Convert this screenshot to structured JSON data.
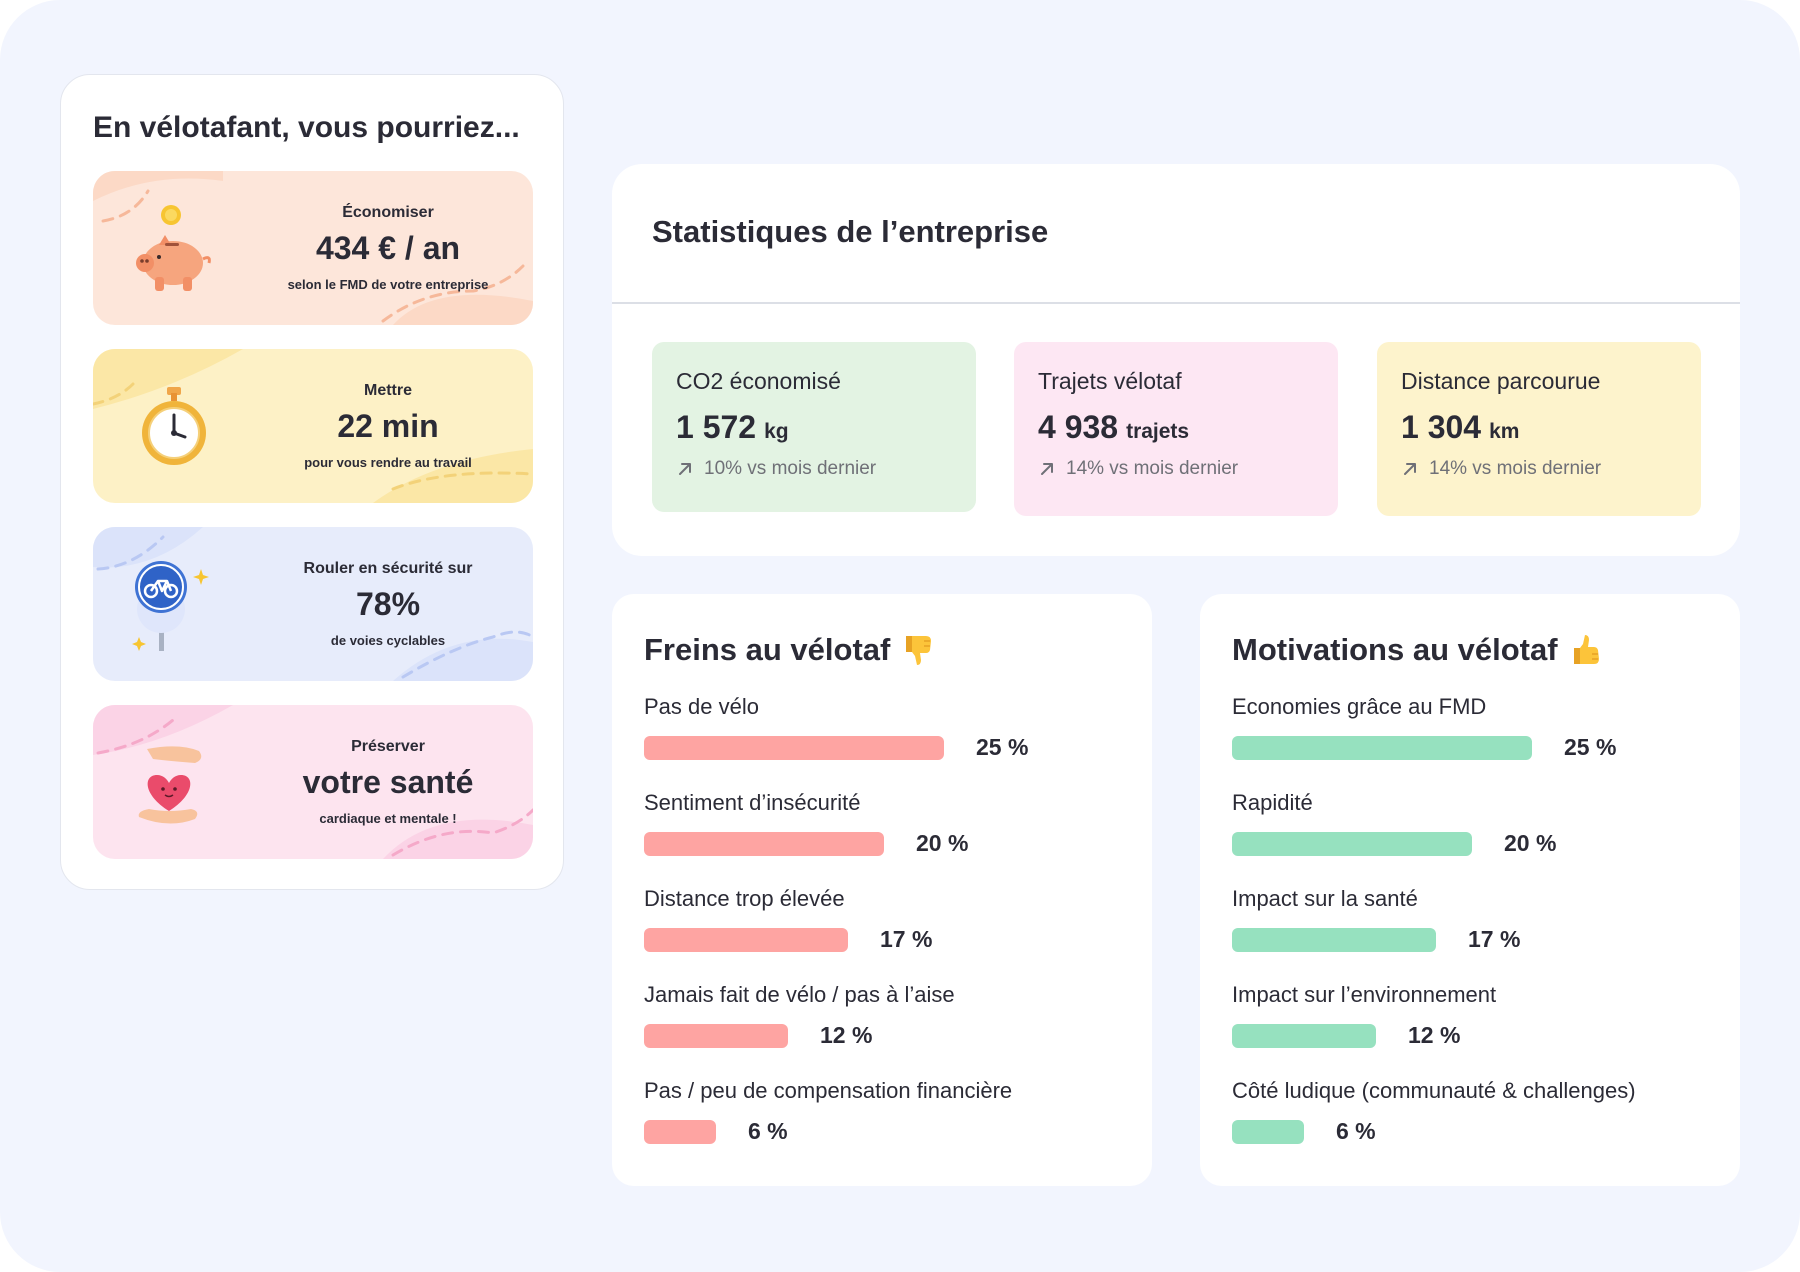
{
  "left_panel": {
    "title": "En vélotafant, vous pourriez...",
    "benefits": [
      {
        "label": "Économiser",
        "value": "434 € / an",
        "sub": "selon le FMD de votre entreprise",
        "icon": "piggy-bank-icon"
      },
      {
        "label": "Mettre",
        "value": "22 min",
        "sub": "pour vous rendre au travail",
        "icon": "stopwatch-icon"
      },
      {
        "label": "Rouler en sécurité sur",
        "value": "78%",
        "sub": "de voies cyclables",
        "icon": "bike-lane-sign-icon"
      },
      {
        "label": "Préserver",
        "value": "votre santé",
        "sub": "cardiaque et mentale !",
        "icon": "heart-in-hands-icon"
      }
    ]
  },
  "stats": {
    "title": "Statistiques de l’entreprise",
    "items": [
      {
        "label": "CO2 économisé",
        "value": "1 572",
        "unit": "kg",
        "trend": "10% vs mois dernier",
        "color": "#e3f3e3"
      },
      {
        "label": "Trajets vélotaf",
        "value": "4 938",
        "unit": "trajets",
        "trend": "14% vs mois dernier",
        "color": "#fde7f3"
      },
      {
        "label": "Distance parcourue",
        "value": "1 304",
        "unit": "km",
        "trend": "14% vs mois dernier",
        "color": "#fdf3cc"
      }
    ]
  },
  "freins": {
    "title": "Freins au vélotaf",
    "icon": "thumbs-down-icon",
    "color": "#fea4a2",
    "items": [
      {
        "label": "Pas de vélo",
        "pct": 25,
        "display": "25 %"
      },
      {
        "label": "Sentiment d’insécurité",
        "pct": 20,
        "display": "20 %"
      },
      {
        "label": "Distance trop élevée",
        "pct": 17,
        "display": "17 %"
      },
      {
        "label": "Jamais fait de vélo / pas à l’aise",
        "pct": 12,
        "display": "12 %"
      },
      {
        "label": "Pas / peu de compensation financière",
        "pct": 6,
        "display": "6 %"
      }
    ]
  },
  "motivations": {
    "title": "Motivations au vélotaf",
    "icon": "thumbs-up-icon",
    "color": "#96e1bf",
    "items": [
      {
        "label": "Economies grâce au FMD",
        "pct": 25,
        "display": "25 %"
      },
      {
        "label": "Rapidité",
        "pct": 20,
        "display": "20 %"
      },
      {
        "label": "Impact sur la santé",
        "pct": 17,
        "display": "17 %"
      },
      {
        "label": "Impact sur l’environnement",
        "pct": 12,
        "display": "12 %"
      },
      {
        "label": "Côté ludique (communauté & challenges)",
        "pct": 6,
        "display": "6 %"
      }
    ]
  }
}
